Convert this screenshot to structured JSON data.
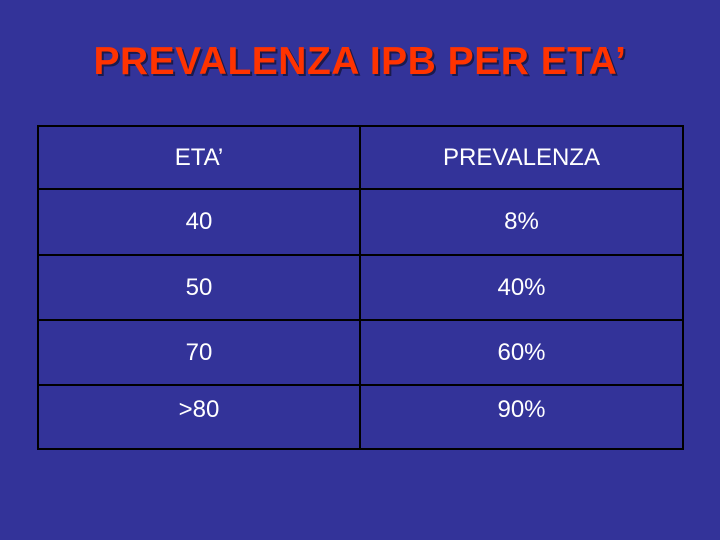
{
  "title": "PREVALENZA IPB PER ETA’",
  "table": {
    "headers": [
      "ETA’",
      "PREVALENZA"
    ],
    "rows": [
      [
        "40",
        "8%"
      ],
      [
        "50",
        "40%"
      ],
      [
        "70",
        "60%"
      ],
      [
        ">80",
        "90%"
      ]
    ]
  },
  "colors": {
    "background": "#333399",
    "title": "#ff3300",
    "text": "#ffffff",
    "grid_lines": "#000000"
  }
}
